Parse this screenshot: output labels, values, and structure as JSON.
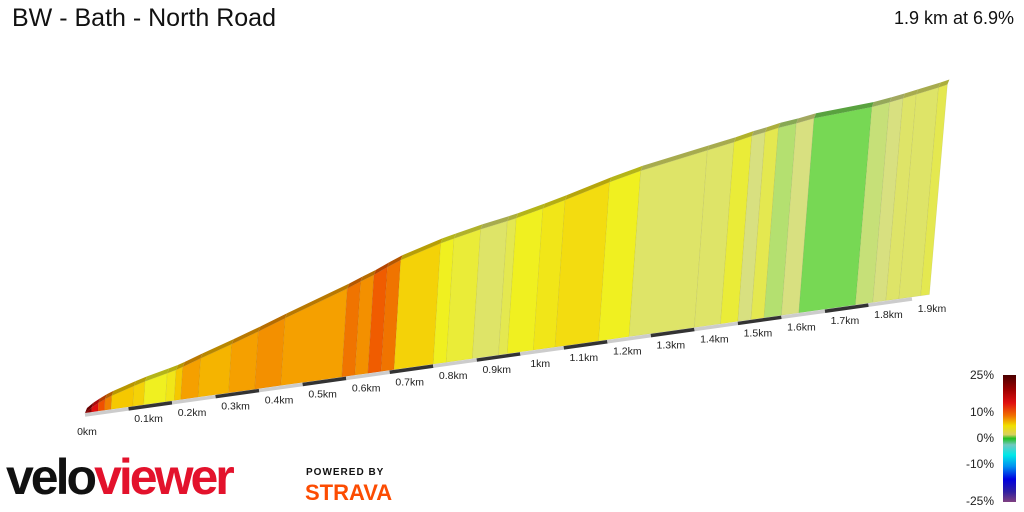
{
  "header": {
    "title": "BW - Bath - North Road",
    "summary": "1.9 km at 6.9%"
  },
  "legend": {
    "labels": [
      "25%",
      "10%",
      "0%",
      "-10%",
      "-25%"
    ]
  },
  "logo": {
    "velo": "velo",
    "viewer": "viewer",
    "powered_by": "POWERED BY",
    "strava": "STRAVA"
  },
  "chart_data": {
    "type": "area",
    "title": "BW - Bath - North Road",
    "xlabel": "",
    "ylabel": "",
    "x_ticks": [
      "0km",
      "0.1km",
      "0.2km",
      "0.3km",
      "0.4km",
      "0.5km",
      "0.6km",
      "0.7km",
      "0.8km",
      "0.9km",
      "1km",
      "1.1km",
      "1.2km",
      "1.3km",
      "1.4km",
      "1.5km",
      "1.6km",
      "1.7km",
      "1.8km",
      "1.9km"
    ],
    "color_scale": "gradient %",
    "segments": [
      {
        "start_km": 0,
        "end_km": 0.015,
        "grade": 18
      },
      {
        "start_km": 0.015,
        "end_km": 0.03,
        "grade": 14
      },
      {
        "start_km": 0.03,
        "end_km": 0.045,
        "grade": 12
      },
      {
        "start_km": 0.045,
        "end_km": 0.06,
        "grade": 10
      },
      {
        "start_km": 0.06,
        "end_km": 0.11,
        "grade": 8
      },
      {
        "start_km": 0.11,
        "end_km": 0.135,
        "grade": 7.5
      },
      {
        "start_km": 0.135,
        "end_km": 0.185,
        "grade": 6
      },
      {
        "start_km": 0.185,
        "end_km": 0.205,
        "grade": 6.5
      },
      {
        "start_km": 0.205,
        "end_km": 0.22,
        "grade": 8
      },
      {
        "start_km": 0.22,
        "end_km": 0.26,
        "grade": 9
      },
      {
        "start_km": 0.26,
        "end_km": 0.33,
        "grade": 8.5
      },
      {
        "start_km": 0.33,
        "end_km": 0.39,
        "grade": 9
      },
      {
        "start_km": 0.39,
        "end_km": 0.45,
        "grade": 9.5
      },
      {
        "start_km": 0.45,
        "end_km": 0.59,
        "grade": 9
      },
      {
        "start_km": 0.59,
        "end_km": 0.62,
        "grade": 10.5
      },
      {
        "start_km": 0.62,
        "end_km": 0.65,
        "grade": 9.5
      },
      {
        "start_km": 0.65,
        "end_km": 0.68,
        "grade": 11.5
      },
      {
        "start_km": 0.68,
        "end_km": 0.71,
        "grade": 10.5
      },
      {
        "start_km": 0.71,
        "end_km": 0.8,
        "grade": 7.5
      },
      {
        "start_km": 0.8,
        "end_km": 0.83,
        "grade": 6
      },
      {
        "start_km": 0.83,
        "end_km": 0.89,
        "grade": 5.5
      },
      {
        "start_km": 0.89,
        "end_km": 0.95,
        "grade": 4.5
      },
      {
        "start_km": 0.95,
        "end_km": 0.97,
        "grade": 5
      },
      {
        "start_km": 0.97,
        "end_km": 1.03,
        "grade": 6
      },
      {
        "start_km": 1.03,
        "end_km": 1.08,
        "grade": 6.5
      },
      {
        "start_km": 1.08,
        "end_km": 1.18,
        "grade": 7
      },
      {
        "start_km": 1.18,
        "end_km": 1.25,
        "grade": 6
      },
      {
        "start_km": 1.25,
        "end_km": 1.4,
        "grade": 4.5
      },
      {
        "start_km": 1.4,
        "end_km": 1.46,
        "grade": 4.5
      },
      {
        "start_km": 1.46,
        "end_km": 1.5,
        "grade": 5.5
      },
      {
        "start_km": 1.5,
        "end_km": 1.53,
        "grade": 4
      },
      {
        "start_km": 1.53,
        "end_km": 1.56,
        "grade": 5
      },
      {
        "start_km": 1.56,
        "end_km": 1.6,
        "grade": 3
      },
      {
        "start_km": 1.6,
        "end_km": 1.64,
        "grade": 4
      },
      {
        "start_km": 1.64,
        "end_km": 1.77,
        "grade": 1.5
      },
      {
        "start_km": 1.77,
        "end_km": 1.81,
        "grade": 3.5
      },
      {
        "start_km": 1.81,
        "end_km": 1.84,
        "grade": 4
      },
      {
        "start_km": 1.84,
        "end_km": 1.87,
        "grade": 4.5
      },
      {
        "start_km": 1.87,
        "end_km": 1.92,
        "grade": 4.5
      },
      {
        "start_km": 1.92,
        "end_km": 1.94,
        "grade": 5
      }
    ]
  }
}
